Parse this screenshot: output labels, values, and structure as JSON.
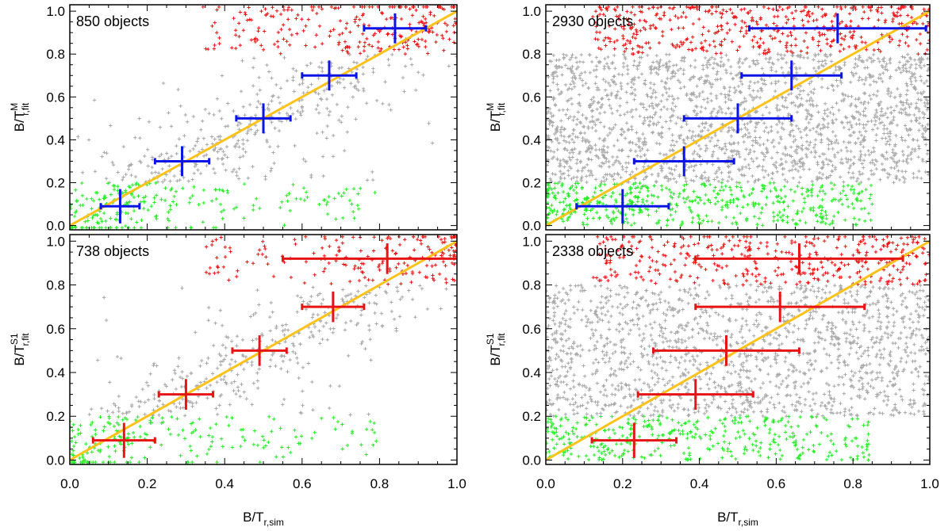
{
  "chart_data": [
    {
      "type": "scatter",
      "panel": "top-left",
      "count_label": "850 objects",
      "ylabel": "B/T",
      "ylabel_sub": "r,fit",
      "ylabel_sup": "M",
      "xlabel": "",
      "xlabel_sub": "",
      "xlim": [
        0,
        1.0
      ],
      "ylim": [
        -0.02,
        1.03
      ],
      "x_ticks": [],
      "y_ticks": [
        "0.0",
        "0.2",
        "0.4",
        "0.6",
        "0.8",
        "1.0"
      ],
      "n_points": 850,
      "seed": 11,
      "mode": "sparse",
      "marker_color": "#0a14e6",
      "binned_points": [
        {
          "x": 0.13,
          "y": 0.09,
          "xerr": 0.05,
          "yerr": 0.08
        },
        {
          "x": 0.29,
          "y": 0.3,
          "xerr": 0.07,
          "yerr": 0.07
        },
        {
          "x": 0.5,
          "y": 0.5,
          "xerr": 0.07,
          "yerr": 0.07
        },
        {
          "x": 0.67,
          "y": 0.7,
          "xerr": 0.07,
          "yerr": 0.07
        },
        {
          "x": 0.84,
          "y": 0.92,
          "xerr": 0.08,
          "yerr": 0.07
        }
      ]
    },
    {
      "type": "scatter",
      "panel": "top-right",
      "count_label": "2930 objects",
      "ylabel": "B/T",
      "ylabel_sub": "r,fit",
      "ylabel_sup": "M",
      "xlabel": "",
      "xlabel_sub": "",
      "xlim": [
        0,
        1.0
      ],
      "ylim": [
        -0.02,
        1.03
      ],
      "x_ticks": [],
      "y_ticks": [
        "0.0",
        "0.2",
        "0.4",
        "0.6",
        "0.8",
        "1.0"
      ],
      "n_points": 2930,
      "seed": 23,
      "mode": "dense",
      "marker_color": "#0a14e6",
      "binned_points": [
        {
          "x": 0.2,
          "y": 0.09,
          "xerr": 0.12,
          "yerr": 0.08
        },
        {
          "x": 0.36,
          "y": 0.3,
          "xerr": 0.13,
          "yerr": 0.07
        },
        {
          "x": 0.5,
          "y": 0.5,
          "xerr": 0.14,
          "yerr": 0.07
        },
        {
          "x": 0.64,
          "y": 0.7,
          "xerr": 0.13,
          "yerr": 0.07
        },
        {
          "x": 0.76,
          "y": 0.92,
          "xerr": 0.23,
          "yerr": 0.07
        }
      ]
    },
    {
      "type": "scatter",
      "panel": "bottom-left",
      "count_label": "738 objects",
      "ylabel": "B/T",
      "ylabel_sub": "r,fit",
      "ylabel_sup": "S1",
      "xlabel": "",
      "xlabel_sub": "",
      "xlim": [
        0,
        1.0
      ],
      "ylim": [
        -0.02,
        1.03
      ],
      "x_ticks": [
        "0.0",
        "0.2",
        "0.4",
        "0.6",
        "0.8",
        "1.0"
      ],
      "y_ticks": [
        "0.0",
        "0.2",
        "0.4",
        "0.6",
        "0.8",
        "1.0"
      ],
      "n_points": 738,
      "seed": 37,
      "mode": "sparse",
      "marker_color": "#e61414",
      "binned_points": [
        {
          "x": 0.14,
          "y": 0.09,
          "xerr": 0.08,
          "yerr": 0.08
        },
        {
          "x": 0.3,
          "y": 0.3,
          "xerr": 0.07,
          "yerr": 0.07
        },
        {
          "x": 0.49,
          "y": 0.5,
          "xerr": 0.07,
          "yerr": 0.07
        },
        {
          "x": 0.68,
          "y": 0.7,
          "xerr": 0.08,
          "yerr": 0.07
        },
        {
          "x": 0.82,
          "y": 0.92,
          "xerr": 0.27,
          "yerr": 0.07
        }
      ]
    },
    {
      "type": "scatter",
      "panel": "bottom-right",
      "count_label": "2338 objects",
      "ylabel": "B/T",
      "ylabel_sub": "r,fit",
      "ylabel_sup": "S1",
      "xlabel": "B/T",
      "xlabel_sub": "r,sim",
      "xlim": [
        0,
        1.0
      ],
      "ylim": [
        -0.02,
        1.03
      ],
      "x_ticks": [
        "0.0",
        "0.2",
        "0.4",
        "0.6",
        "0.8",
        "1.0"
      ],
      "y_ticks": [
        "0.0",
        "0.2",
        "0.4",
        "0.6",
        "0.8",
        "1.0"
      ],
      "n_points": 2338,
      "seed": 53,
      "mode": "dense",
      "marker_color": "#e61414",
      "binned_points": [
        {
          "x": 0.23,
          "y": 0.09,
          "xerr": 0.11,
          "yerr": 0.08
        },
        {
          "x": 0.39,
          "y": 0.3,
          "xerr": 0.15,
          "yerr": 0.07
        },
        {
          "x": 0.47,
          "y": 0.5,
          "xerr": 0.19,
          "yerr": 0.07
        },
        {
          "x": 0.61,
          "y": 0.7,
          "xerr": 0.22,
          "yerr": 0.07
        },
        {
          "x": 0.66,
          "y": 0.92,
          "xerr": 0.27,
          "yerr": 0.07
        }
      ]
    }
  ],
  "bottom_left_xlabel": "B/T",
  "bottom_left_xlabel_sub": "r,sim",
  "colors": {
    "one_to_one_line": "#ffc21a",
    "scatter_mid": "#a8a8a8",
    "scatter_low": "#22ee22",
    "scatter_high": "#ee1111"
  }
}
